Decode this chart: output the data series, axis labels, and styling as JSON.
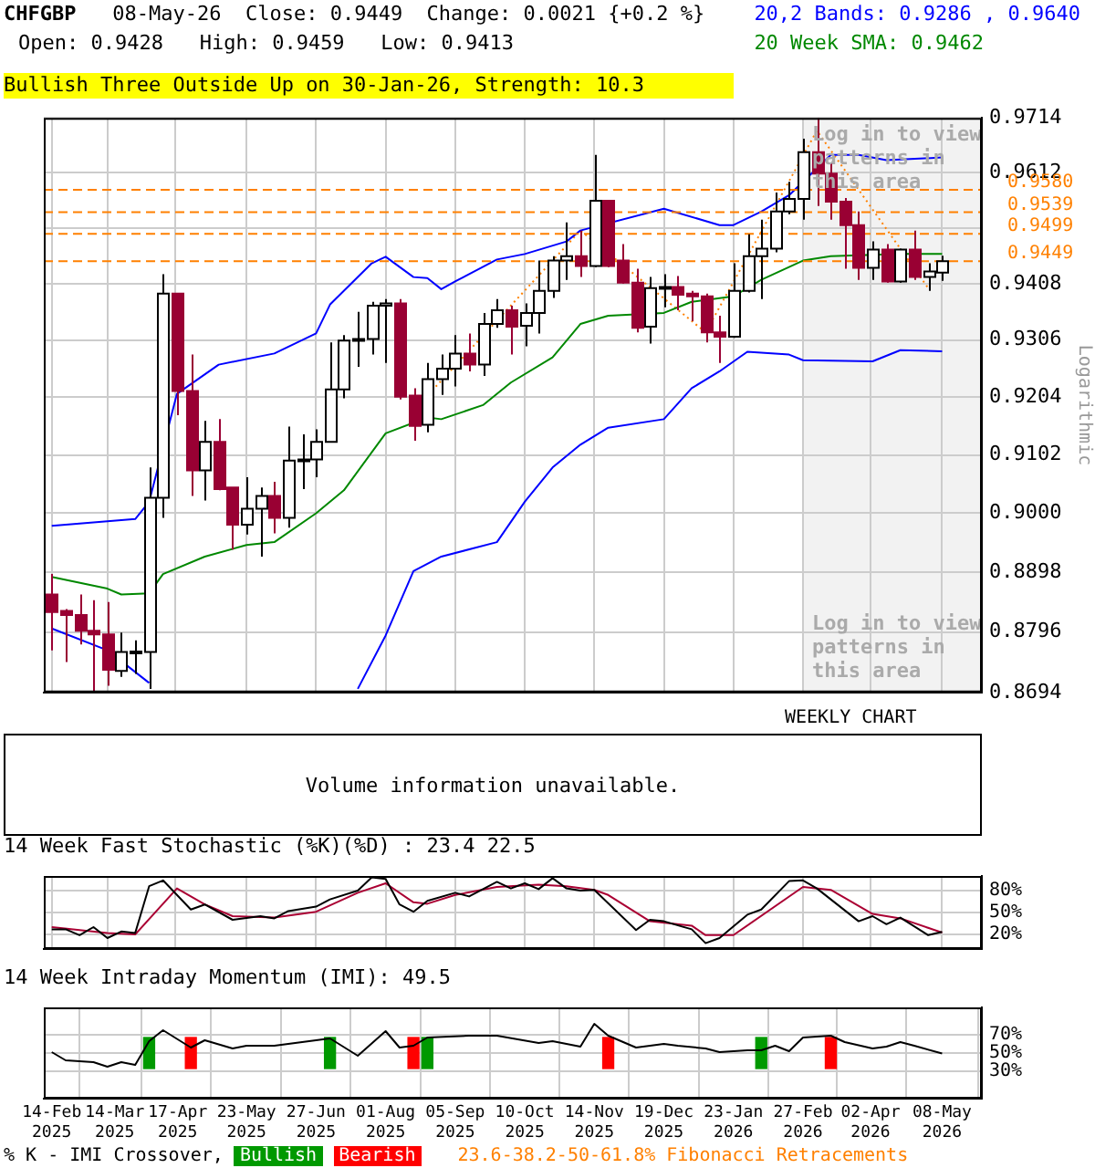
{
  "chart_data": [
    {
      "type": "candlestick",
      "title": "CHFGBP",
      "subtitle": "08-May-26  Close: 0.9449  Change: 0.0021 {+0.2 %}",
      "ylabel": "Logarithmic",
      "log": true,
      "grid": true,
      "legend": "top right",
      "tick_labels": "y",
      "annotations": [
        "Open: 0.9428   High: 0.9459   Low: 0.9413",
        "Bullish Three Outside Up on 30-Jan-26, Strength: 10.3",
        "WEEKLY CHART",
        "Log in to view patterns in this area",
        "23.6-38.2-50-61.8% Fibonacci Retracements"
      ],
      "x": [
        "2025-02-14",
        "2025-02-21",
        "2025-02-28",
        "2025-03-07",
        "2025-03-14",
        "2025-03-21",
        "2025-03-28",
        "2025-04-04",
        "2025-04-11",
        "2025-04-18",
        "2025-04-25",
        "2025-05-02",
        "2025-05-09",
        "2025-05-16",
        "2025-05-23",
        "2025-05-30",
        "2025-06-06",
        "2025-06-13",
        "2025-06-20",
        "2025-06-27",
        "2025-07-04",
        "2025-07-11",
        "2025-07-18",
        "2025-07-25",
        "2025-08-01",
        "2025-08-08",
        "2025-08-15",
        "2025-08-22",
        "2025-08-29",
        "2025-09-05",
        "2025-09-12",
        "2025-09-19",
        "2025-09-26",
        "2025-10-03",
        "2025-10-10",
        "2025-10-17",
        "2025-10-24",
        "2025-10-31",
        "2025-11-07",
        "2025-11-14",
        "2025-11-21",
        "2025-11-28",
        "2025-12-05",
        "2025-12-12",
        "2025-12-19",
        "2025-12-26",
        "2026-01-02",
        "2026-01-09",
        "2026-01-16",
        "2026-01-23",
        "2026-01-30",
        "2026-02-06",
        "2026-02-13",
        "2026-02-20",
        "2026-02-27",
        "2026-03-06",
        "2026-03-13",
        "2026-03-20",
        "2026-03-27",
        "2026-04-03",
        "2026-04-10",
        "2026-04-17",
        "2026-04-24",
        "2026-05-01",
        "2026-05-08"
      ],
      "ohlc": [
        [
          0.886,
          0.8895,
          0.8765,
          0.883
        ],
        [
          0.8832,
          0.8835,
          0.8745,
          0.8825
        ],
        [
          0.8825,
          0.886,
          0.8775,
          0.8798
        ],
        [
          0.8798,
          0.885,
          0.8695,
          0.8792
        ],
        [
          0.8792,
          0.8847,
          0.8705,
          0.8732
        ],
        [
          0.873,
          0.8795,
          0.872,
          0.8762
        ],
        [
          0.8762,
          0.8782,
          0.8725,
          0.8763
        ],
        [
          0.8762,
          0.908,
          0.87,
          0.9027
        ],
        [
          0.9027,
          0.9425,
          0.8992,
          0.939
        ],
        [
          0.939,
          0.939,
          0.9172,
          0.9215
        ],
        [
          0.9215,
          0.928,
          0.903,
          0.9075
        ],
        [
          0.9075,
          0.9162,
          0.9022,
          0.9125
        ],
        [
          0.9125,
          0.9165,
          0.904,
          0.9042
        ],
        [
          0.9045,
          0.9045,
          0.8937,
          0.898
        ],
        [
          0.898,
          0.9063,
          0.8963,
          0.9008
        ],
        [
          0.9008,
          0.9045,
          0.8925,
          0.903
        ],
        [
          0.903,
          0.9055,
          0.8965,
          0.8992
        ],
        [
          0.8992,
          0.9152,
          0.8975,
          0.9092
        ],
        [
          0.9092,
          0.9138,
          0.9042,
          0.9094
        ],
        [
          0.9094,
          0.9147,
          0.9063,
          0.9125
        ],
        [
          0.9125,
          0.9302,
          0.9125,
          0.9218
        ],
        [
          0.9218,
          0.9315,
          0.9202,
          0.9305
        ],
        [
          0.9305,
          0.9357,
          0.9258,
          0.9308
        ],
        [
          0.9308,
          0.9375,
          0.928,
          0.9368
        ],
        [
          0.9368,
          0.938,
          0.9265,
          0.9372
        ],
        [
          0.9372,
          0.938,
          0.92,
          0.9205
        ],
        [
          0.9207,
          0.922,
          0.9127,
          0.9153
        ],
        [
          0.9155,
          0.9265,
          0.9142,
          0.9236
        ],
        [
          0.9236,
          0.928,
          0.9208,
          0.9255
        ],
        [
          0.9255,
          0.9315,
          0.9223,
          0.9282
        ],
        [
          0.9282,
          0.9318,
          0.925,
          0.9262
        ],
        [
          0.9262,
          0.9355,
          0.9242,
          0.9335
        ],
        [
          0.9335,
          0.938,
          0.9328,
          0.936
        ],
        [
          0.936,
          0.9368,
          0.928,
          0.933
        ],
        [
          0.9332,
          0.9372,
          0.9295,
          0.9355
        ],
        [
          0.9355,
          0.945,
          0.9318,
          0.9395
        ],
        [
          0.9395,
          0.9458,
          0.9382,
          0.945
        ],
        [
          0.945,
          0.952,
          0.9415,
          0.9458
        ],
        [
          0.9458,
          0.9505,
          0.942,
          0.944
        ],
        [
          0.944,
          0.9645,
          0.9438,
          0.956
        ],
        [
          0.956,
          0.956,
          0.9438,
          0.944
        ],
        [
          0.945,
          0.948,
          0.9408,
          0.941
        ],
        [
          0.941,
          0.9435,
          0.932,
          0.9328
        ],
        [
          0.933,
          0.942,
          0.93,
          0.94
        ],
        [
          0.94,
          0.9425,
          0.9365,
          0.9402
        ],
        [
          0.9402,
          0.9422,
          0.936,
          0.9388
        ],
        [
          0.939,
          0.9395,
          0.934,
          0.9385
        ],
        [
          0.9385,
          0.939,
          0.9302,
          0.932
        ],
        [
          0.932,
          0.935,
          0.9265,
          0.9312
        ],
        [
          0.9312,
          0.9445,
          0.931,
          0.9395
        ],
        [
          0.9395,
          0.9498,
          0.9392,
          0.9458
        ],
        [
          0.9458,
          0.9525,
          0.938,
          0.9472
        ],
        [
          0.9472,
          0.9575,
          0.9465,
          0.954
        ],
        [
          0.954,
          0.9595,
          0.9535,
          0.9563
        ],
        [
          0.9563,
          0.9675,
          0.9525,
          0.965
        ],
        [
          0.965,
          0.9714,
          0.955,
          0.961
        ],
        [
          0.961,
          0.963,
          0.9525,
          0.9558
        ],
        [
          0.9558,
          0.9565,
          0.9435,
          0.9515
        ],
        [
          0.9515,
          0.954,
          0.9415,
          0.9437
        ],
        [
          0.9437,
          0.9485,
          0.9415,
          0.947
        ],
        [
          0.947,
          0.948,
          0.941,
          0.9412
        ],
        [
          0.9412,
          0.9472,
          0.941,
          0.947
        ],
        [
          0.947,
          0.9505,
          0.9415,
          0.942
        ],
        [
          0.942,
          0.9445,
          0.9395,
          0.943
        ],
        [
          0.9428,
          0.9459,
          0.9413,
          0.9449
        ]
      ],
      "series": [
        {
          "type": "line",
          "name": "20,2 Bands: 0.9286 , 0.9640",
          "color": "#0000ff",
          "x": [
            "2025-02-14",
            "2025-03-28",
            "2025-04-04",
            "2025-04-18",
            "2025-05-09",
            "2025-06-06",
            "2025-06-27",
            "2025-07-04",
            "2025-07-25",
            "2025-08-01",
            "2025-08-15",
            "2025-08-22",
            "2025-08-29",
            "2025-09-05",
            "2025-09-26",
            "2025-10-10",
            "2025-10-31",
            "2025-11-07",
            "2025-12-19",
            "2026-01-16",
            "2026-01-23",
            "2026-02-06",
            "2026-02-20",
            "2026-03-13",
            "2026-03-27",
            "2026-04-10",
            "2026-05-08"
          ],
          "values": [
            0.8978,
            0.899,
            0.902,
            0.921,
            0.9262,
            0.9282,
            0.9318,
            0.937,
            0.9445,
            0.9457,
            0.942,
            0.9418,
            0.9398,
            0.9412,
            0.9452,
            0.9462,
            0.9485,
            0.9505,
            0.9545,
            0.9515,
            0.9515,
            0.954,
            0.957,
            0.9645,
            0.9645,
            0.9635,
            0.964
          ]
        },
        {
          "type": "line",
          "color": "#0000ff",
          "x": [
            "2025-02-14",
            "2025-03-14",
            "2025-04-04",
            "2025-04-11",
            "2025-07-18",
            "2025-08-01",
            "2025-08-15",
            "2025-08-29",
            "2025-09-26",
            "2025-10-10",
            "2025-10-24",
            "2025-11-07",
            "2025-11-21",
            "2025-12-19",
            "2026-01-02",
            "2026-01-16",
            "2026-01-30",
            "2026-02-20",
            "2026-02-27",
            "2026-04-03",
            "2026-04-17",
            "2026-05-08"
          ],
          "values": [
            0.8802,
            0.8765,
            0.871,
            null,
            0.87,
            0.879,
            0.89,
            0.8925,
            0.895,
            0.902,
            0.908,
            0.912,
            0.915,
            0.9165,
            0.922,
            0.925,
            0.9285,
            0.928,
            0.927,
            0.9268,
            0.9288,
            0.9286
          ]
        },
        {
          "type": "line",
          "name": "20 Week SMA: 0.9462",
          "color": "#008800",
          "x": [
            "2025-02-14",
            "2025-03-14",
            "2025-03-21",
            "2025-04-04",
            "2025-04-11",
            "2025-05-02",
            "2025-05-23",
            "2025-06-06",
            "2025-06-27",
            "2025-07-11",
            "2025-08-01",
            "2025-08-22",
            "2025-08-29",
            "2025-09-19",
            "2025-10-03",
            "2025-10-24",
            "2025-11-07",
            "2025-11-21",
            "2025-12-19",
            "2026-01-02",
            "2026-01-23",
            "2026-02-06",
            "2026-02-27",
            "2026-03-13",
            "2026-04-17",
            "2026-05-08"
          ],
          "values": [
            0.889,
            0.887,
            0.886,
            0.8862,
            0.8895,
            0.8925,
            0.8945,
            0.895,
            0.9,
            0.904,
            0.914,
            0.9168,
            0.9165,
            0.919,
            0.923,
            0.9275,
            0.9335,
            0.935,
            0.9355,
            0.9375,
            0.9385,
            0.9415,
            0.945,
            0.9458,
            0.9462,
            0.9462
          ]
        },
        {
          "type": "line",
          "color": "#ff8000",
          "line_style": "dotted",
          "x": [
            "2025-08-15",
            "2025-11-07",
            "2026-01-09",
            "2026-03-06",
            "2026-05-01"
          ],
          "values": [
            0.918,
            0.9505,
            0.932,
            0.969,
            0.94
          ]
        }
      ],
      "ref_lines": [
        {
          "axis": "y",
          "value": 0.958,
          "label": "0.9580",
          "color": "#ff8000",
          "line_style": "dashed"
        },
        {
          "axis": "y",
          "value": 0.9539,
          "label": "0.9539",
          "color": "#ff8000",
          "line_style": "dashed"
        },
        {
          "axis": "y",
          "value": 0.9499,
          "label": "0.9499",
          "color": "#ff8000",
          "line_style": "dashed"
        },
        {
          "axis": "y",
          "value": 0.9449,
          "label": "0.9449",
          "color": "#ff8000",
          "line_style": "dashed"
        }
      ],
      "bands": [
        {
          "axis": "x",
          "from": "2026-02-27",
          "to": "2026-05-28",
          "label": "Log in to view patterns in this area",
          "color": "#f2f2f2"
        }
      ],
      "xlim": [
        "2025-02-10",
        "2026-05-28"
      ],
      "xticks": [
        {
          "value": "2025-02-14",
          "label": null
        },
        {
          "value": "2025-03-14",
          "label": null
        },
        {
          "value": "2025-04-17",
          "label": null
        },
        {
          "value": "2025-05-23",
          "label": null
        },
        {
          "value": "2025-06-27",
          "label": null
        },
        {
          "value": "2025-08-01",
          "label": null
        },
        {
          "value": "2025-09-05",
          "label": null
        },
        {
          "value": "2025-10-10",
          "label": null
        },
        {
          "value": "2025-11-14",
          "label": null
        },
        {
          "value": "2025-12-19",
          "label": null
        },
        {
          "value": "2026-01-23",
          "label": null
        },
        {
          "value": "2026-02-27",
          "label": null
        },
        {
          "value": "2026-04-02",
          "label": null
        },
        {
          "value": "2026-05-08",
          "label": null
        }
      ],
      "ylim": [
        0.8694,
        0.9714
      ],
      "yticks": [
        0.8694,
        0.8796,
        0.8898,
        {
          "value": 0.9,
          "label": "0.9000"
        },
        0.9102,
        0.9204,
        0.9306,
        0.9408,
        {
          "value": 0.951,
          "label": null
        },
        0.9612,
        0.9714
      ]
    },
    {
      "type": "other",
      "annotations": [
        "Volume information unavailable."
      ]
    },
    {
      "type": "line",
      "title": "14 Week Fast Stochastic (%K)(%D) : 23.4 22.5",
      "grid": true,
      "tick_labels": "y",
      "series": [
        {
          "color": "#000000",
          "x": [
            "2025-02-14",
            "2025-02-21",
            "2025-02-28",
            "2025-03-07",
            "2025-03-14",
            "2025-03-21",
            "2025-03-28",
            "2025-04-04",
            "2025-04-11",
            "2025-04-25",
            "2025-05-02",
            "2025-05-16",
            "2025-05-30",
            "2025-06-06",
            "2025-06-13",
            "2025-06-27",
            "2025-07-04",
            "2025-07-18",
            "2025-07-25",
            "2025-08-01",
            "2025-08-08",
            "2025-08-15",
            "2025-08-22",
            "2025-09-05",
            "2025-09-12",
            "2025-09-26",
            "2025-10-03",
            "2025-10-10",
            "2025-10-17",
            "2025-10-24",
            "2025-10-31",
            "2025-11-07",
            "2025-11-14",
            "2025-12-05",
            "2025-12-12",
            "2025-12-19",
            "2026-01-02",
            "2026-01-09",
            "2026-01-16",
            "2026-01-30",
            "2026-02-06",
            "2026-02-20",
            "2026-02-27",
            "2026-03-06",
            "2026-03-27",
            "2026-04-03",
            "2026-04-10",
            "2026-04-17",
            "2026-05-01",
            "2026-05-08"
          ],
          "values": [
            27,
            27,
            19,
            30,
            15,
            24,
            22,
            86,
            94,
            54,
            61,
            40,
            45,
            42,
            52,
            58,
            68,
            80,
            98,
            96,
            61,
            51,
            66,
            77,
            72,
            92,
            83,
            90,
            82,
            97,
            83,
            80,
            81,
            26,
            40,
            38,
            27,
            8,
            15,
            47,
            54,
            93,
            94,
            83,
            38,
            45,
            34,
            43,
            19,
            23.4
          ]
        },
        {
          "color": "#aa0033",
          "x": [
            "2025-02-14",
            "2025-02-28",
            "2025-03-14",
            "2025-03-28",
            "2025-04-18",
            "2025-05-02",
            "2025-05-16",
            "2025-06-06",
            "2025-06-27",
            "2025-07-18",
            "2025-08-01",
            "2025-08-15",
            "2025-08-22",
            "2025-09-05",
            "2025-09-26",
            "2025-10-17",
            "2025-10-31",
            "2025-11-14",
            "2025-11-21",
            "2025-12-12",
            "2026-01-02",
            "2026-01-09",
            "2026-01-23",
            "2026-02-27",
            "2026-03-13",
            "2026-04-03",
            "2026-04-17",
            "2026-05-08"
          ],
          "values": [
            30,
            26,
            22,
            20,
            83,
            61,
            45,
            43,
            51,
            77,
            90,
            64,
            62,
            74,
            85,
            88,
            86,
            81,
            74,
            38,
            32,
            19,
            19,
            85,
            81,
            48,
            42,
            22.5
          ]
        }
      ],
      "xlim": [
        "2025-02-10",
        "2026-05-28"
      ],
      "xticks": [
        {
          "value": "2025-02-14",
          "label": null
        },
        {
          "value": "2025-03-14",
          "label": null
        },
        {
          "value": "2025-04-17",
          "label": null
        },
        {
          "value": "2025-05-23",
          "label": null
        },
        {
          "value": "2025-06-27",
          "label": null
        },
        {
          "value": "2025-08-01",
          "label": null
        },
        {
          "value": "2025-09-05",
          "label": null
        },
        {
          "value": "2025-10-10",
          "label": null
        },
        {
          "value": "2025-11-14",
          "label": null
        },
        {
          "value": "2025-12-19",
          "label": null
        },
        {
          "value": "2026-01-23",
          "label": null
        },
        {
          "value": "2026-02-27",
          "label": null
        },
        {
          "value": "2026-04-02",
          "label": null
        },
        {
          "value": "2026-05-08",
          "label": null
        }
      ],
      "ylim": [
        0,
        100
      ],
      "yticks": [
        {
          "value": 20,
          "label": "20%"
        },
        {
          "value": 50,
          "label": "50%"
        },
        {
          "value": 80,
          "label": "80%"
        }
      ]
    },
    {
      "type": "line",
      "title": "14 Week Intraday Momentum (IMI): 49.5",
      "grid": true,
      "legend": "bottom",
      "legend_title": "% K - IMI Crossover,",
      "series": [
        {
          "color": "#000000",
          "x": [
            "2025-02-14",
            "2025-02-21",
            "2025-03-07",
            "2025-03-14",
            "2025-03-21",
            "2025-03-28",
            "2025-04-04",
            "2025-04-11",
            "2025-04-25",
            "2025-05-02",
            "2025-05-16",
            "2025-05-23",
            "2025-06-06",
            "2025-06-20",
            "2025-07-04",
            "2025-07-18",
            "2025-08-01",
            "2025-08-08",
            "2025-08-15",
            "2025-08-22",
            "2025-09-12",
            "2025-09-26",
            "2025-10-17",
            "2025-10-24",
            "2025-11-07",
            "2025-11-14",
            "2025-11-21",
            "2025-12-05",
            "2025-12-19",
            "2025-12-26",
            "2026-01-09",
            "2026-01-16",
            "2026-01-30",
            "2026-02-06",
            "2026-02-13",
            "2026-02-20",
            "2026-02-27",
            "2026-03-13",
            "2026-03-20",
            "2026-04-03",
            "2026-04-10",
            "2026-04-17",
            "2026-04-24",
            "2026-05-08"
          ],
          "values": [
            51,
            42,
            40,
            35,
            40,
            37,
            63,
            75,
            56,
            64,
            55,
            58,
            58,
            62,
            66,
            47,
            74,
            56,
            58,
            67,
            69,
            69,
            61,
            63,
            57,
            82,
            69,
            56,
            60,
            58,
            55,
            51,
            53,
            53,
            58,
            52,
            67,
            69,
            62,
            55,
            57,
            62,
            58,
            49.5
          ]
        },
        {
          "type": "bar",
          "name": "Bullish",
          "color": "#009900",
          "x": [
            "2025-04-04",
            "2025-07-04",
            "2025-08-22",
            "2026-02-06"
          ],
          "base": [
            33,
            33,
            33,
            33
          ],
          "values": [
            34,
            34,
            34,
            34
          ]
        },
        {
          "type": "bar",
          "name": "Bearish",
          "color": "#ff0000",
          "x": [
            "2025-04-25",
            "2025-08-15",
            "2025-11-21",
            "2026-03-13"
          ],
          "base": [
            33,
            33,
            33,
            33
          ],
          "values": [
            34,
            34,
            34,
            34
          ]
        }
      ],
      "xlim": [
        "2025-02-10",
        "2026-05-28"
      ],
      "xticks": [
        {
          "value": "2025-02-14",
          "label": "14-Feb 2025"
        },
        {
          "value": "2025-03-14",
          "label": "14-Mar 2025"
        },
        {
          "value": "2025-04-17",
          "label": "17-Apr 2025"
        },
        {
          "value": "2025-05-23",
          "label": "23-May 2025"
        },
        {
          "value": "2025-06-27",
          "label": "27-Jun 2025"
        },
        {
          "value": "2025-08-01",
          "label": "01-Aug 2025"
        },
        {
          "value": "2025-09-05",
          "label": "05-Sep 2025"
        },
        {
          "value": "2025-10-10",
          "label": "10-Oct 2025"
        },
        {
          "value": "2025-11-14",
          "label": "14-Nov 2025"
        },
        {
          "value": "2025-12-19",
          "label": "19-Dec 2025"
        },
        {
          "value": "2026-01-23",
          "label": "23-Jan 2026"
        },
        {
          "value": "2026-02-27",
          "label": "27-Feb 2026"
        },
        {
          "value": "2026-04-02",
          "label": "02-Apr 2026"
        },
        {
          "value": "2026-05-08",
          "label": "08-May 2026"
        }
      ],
      "ylim": [
        0,
        100
      ],
      "yticks": [
        {
          "value": 30,
          "label": "30%"
        },
        {
          "value": 50,
          "label": "50%"
        },
        {
          "value": 70,
          "label": "70%"
        }
      ]
    }
  ]
}
